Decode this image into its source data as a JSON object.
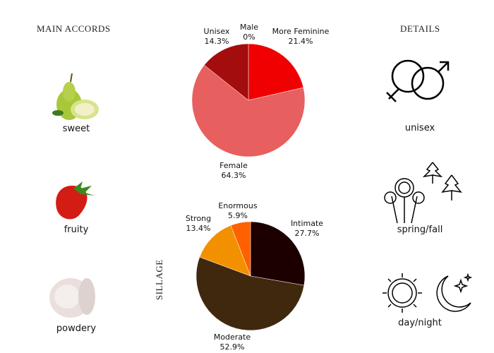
{
  "accords": {
    "title": "MAIN ACCORDS",
    "items": [
      {
        "label": "sweet",
        "icon": "pear-image"
      },
      {
        "label": "fruity",
        "icon": "strawberry-image"
      },
      {
        "label": "powdery",
        "icon": "powder-image"
      }
    ]
  },
  "details": {
    "title": "DETAILS",
    "items": [
      {
        "label": "unisex",
        "icon": "gender-symbols-icon"
      },
      {
        "label": "spring/fall",
        "icon": "flowers-leaves-icon"
      },
      {
        "label": "day/night",
        "icon": "sun-moon-icon"
      }
    ]
  },
  "sillage_title": "SILLAGE",
  "chart_data": [
    {
      "type": "pie",
      "slices": [
        {
          "name": "More Feminine",
          "value": 21.4,
          "label": "21.4%",
          "color": "#f00000"
        },
        {
          "name": "Female",
          "value": 64.3,
          "label": "64.3%",
          "color": "#e85f5f"
        },
        {
          "name": "Unisex",
          "value": 14.3,
          "label": "14.3%",
          "color": "#a30d0d"
        },
        {
          "name": "Male",
          "value": 0,
          "label": "0%",
          "color": "#600000"
        }
      ]
    },
    {
      "type": "pie",
      "title": "SILLAGE",
      "slices": [
        {
          "name": "Intimate",
          "value": 27.7,
          "label": "27.7%",
          "color": "#1c0000"
        },
        {
          "name": "Moderate",
          "value": 52.9,
          "label": "52.9%",
          "color": "#40280f"
        },
        {
          "name": "Strong",
          "value": 13.4,
          "label": "13.4%",
          "color": "#f39000"
        },
        {
          "name": "Enormous",
          "value": 5.9,
          "label": "5.9%",
          "color": "#ff6000"
        }
      ]
    }
  ]
}
